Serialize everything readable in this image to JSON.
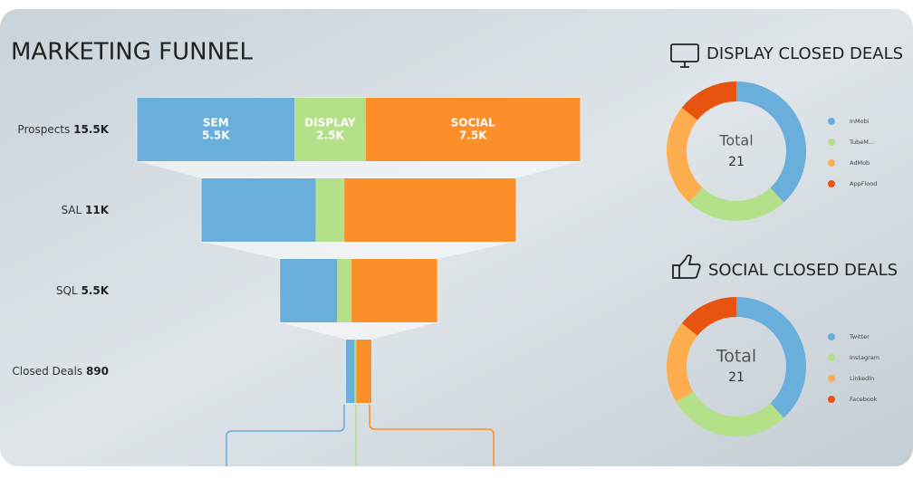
{
  "chart_data": [
    {
      "type": "funnel",
      "title": "MARKETING FUNNEL",
      "categories": [
        "Prospects",
        "SAL",
        "SQL",
        "Closed Deals"
      ],
      "totals": [
        15500,
        11000,
        5500,
        890
      ],
      "total_labels": [
        "15.5K",
        "11K",
        "5.5K",
        "890"
      ],
      "series": [
        {
          "name": "SEM",
          "color": "#6aaedc",
          "values": [
            5500,
            4000,
            2000,
            300
          ],
          "value_labels": [
            "5.5K",
            null,
            null,
            null
          ]
        },
        {
          "name": "DISPLAY",
          "color": "#b5e08a",
          "values": [
            2500,
            1000,
            500,
            60
          ],
          "value_labels": [
            "2.5K",
            null,
            null,
            null
          ]
        },
        {
          "name": "SOCIAL",
          "color": "#fd8f2a",
          "values": [
            7500,
            6000,
            3000,
            530
          ],
          "value_labels": [
            "7.5K",
            null,
            null,
            null
          ]
        }
      ]
    },
    {
      "type": "donut",
      "title": "DISPLAY CLOSED DEALS",
      "total_label": "Total",
      "total": 21,
      "categories": [
        "InMobi",
        "TubeM...",
        "AdMob",
        "AppFlood"
      ],
      "values": [
        8,
        5,
        5,
        3
      ],
      "colors": [
        "#6aaedc",
        "#b5e08a",
        "#fdad4e",
        "#e8540f"
      ]
    },
    {
      "type": "donut",
      "title": "SOCIAL CLOSED DEALS",
      "total_label": "Total",
      "total": 21,
      "categories": [
        "Twitter",
        "Instagram",
        "LinkedIn",
        "Facebook"
      ],
      "values": [
        8,
        6,
        4,
        3
      ],
      "colors": [
        "#6aaedc",
        "#b5e08a",
        "#fdad4e",
        "#e8540f"
      ]
    }
  ]
}
